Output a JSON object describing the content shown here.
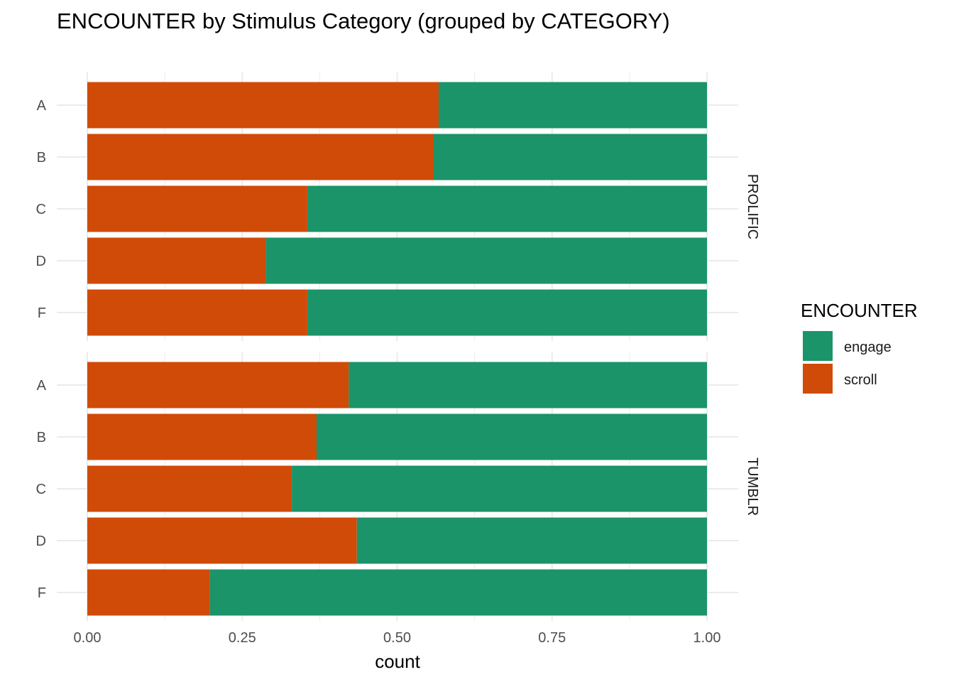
{
  "chart_data": {
    "type": "bar",
    "orientation": "horizontal",
    "stacked": true,
    "title": "ENCOUNTER by Stimulus Category (grouped by CATEGORY)",
    "xlabel": "count",
    "ylabel": "",
    "xlim": [
      0,
      1
    ],
    "x_ticks": [
      "0.00",
      "0.25",
      "0.50",
      "0.75",
      "1.00"
    ],
    "grid": true,
    "legend": {
      "title": "ENCOUNTER",
      "placement": "right",
      "entries": [
        {
          "name": "engage",
          "color": "#1b9469"
        },
        {
          "name": "scroll",
          "color": "#d04b07"
        }
      ]
    },
    "facets": [
      {
        "label": "PROLIFIC",
        "categories": [
          "A",
          "B",
          "C",
          "D",
          "F"
        ],
        "series": [
          {
            "name": "scroll",
            "values": [
              0.567,
              0.559,
              0.355,
              0.288,
              0.355
            ]
          },
          {
            "name": "engage",
            "values": [
              0.433,
              0.441,
              0.645,
              0.712,
              0.645
            ]
          }
        ]
      },
      {
        "label": "TUMBLR",
        "categories": [
          "A",
          "B",
          "C",
          "D",
          "F"
        ],
        "series": [
          {
            "name": "scroll",
            "values": [
              0.422,
              0.37,
              0.33,
              0.435,
              0.198
            ]
          },
          {
            "name": "engage",
            "values": [
              0.578,
              0.63,
              0.67,
              0.565,
              0.802
            ]
          }
        ]
      }
    ]
  }
}
